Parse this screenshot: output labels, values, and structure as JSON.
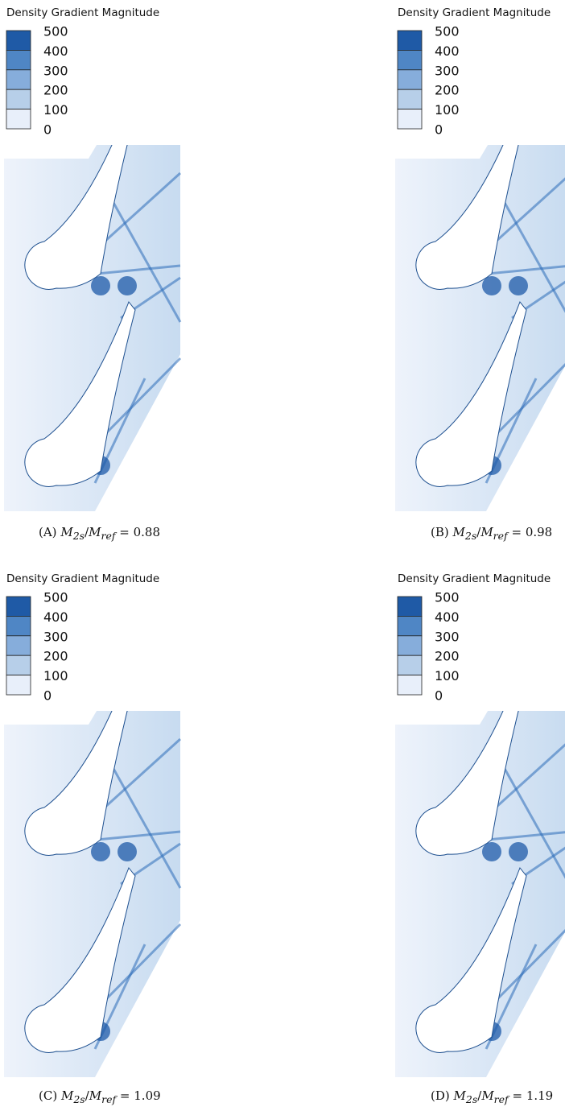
{
  "panels": [
    {
      "legend": {
        "title": "Density Gradient Magnitude",
        "levels": [
          500,
          400,
          300,
          200,
          100,
          0
        ]
      },
      "caption": {
        "label": "(A)",
        "expr": [
          {
            "t": "M",
            "sub": "2s"
          },
          {
            "t": "/"
          },
          {
            "t": "M",
            "sub": "ref"
          }
        ],
        "eq": "=",
        "value": "0.88"
      }
    },
    {
      "legend": {
        "title": "Density Gradient Magnitude",
        "levels": [
          500,
          400,
          300,
          200,
          100,
          0
        ]
      },
      "caption": {
        "label": "(B)",
        "expr": [
          {
            "t": "M",
            "sub": "2s"
          },
          {
            "t": "/"
          },
          {
            "t": "M",
            "sub": "ref"
          }
        ],
        "eq": "=",
        "value": "0.98"
      }
    },
    {
      "legend": {
        "title": "Density Gradient Magnitude",
        "levels": [
          500,
          400,
          300,
          200,
          100,
          0
        ]
      },
      "caption": {
        "label": "(C)",
        "expr": [
          {
            "t": "M",
            "sub": "2s"
          },
          {
            "t": "/"
          },
          {
            "t": "M",
            "sub": "ref"
          }
        ],
        "eq": "=",
        "value": "1.09"
      }
    },
    {
      "legend": {
        "title": "Density Gradient Magnitude",
        "levels": [
          500,
          400,
          300,
          200,
          100,
          0
        ]
      },
      "caption": {
        "label": "(D)",
        "expr": [
          {
            "t": "M",
            "sub": "2s"
          },
          {
            "t": "/"
          },
          {
            "t": "M",
            "sub": "ref"
          }
        ],
        "eq": "=",
        "value": "1.19"
      }
    }
  ]
}
